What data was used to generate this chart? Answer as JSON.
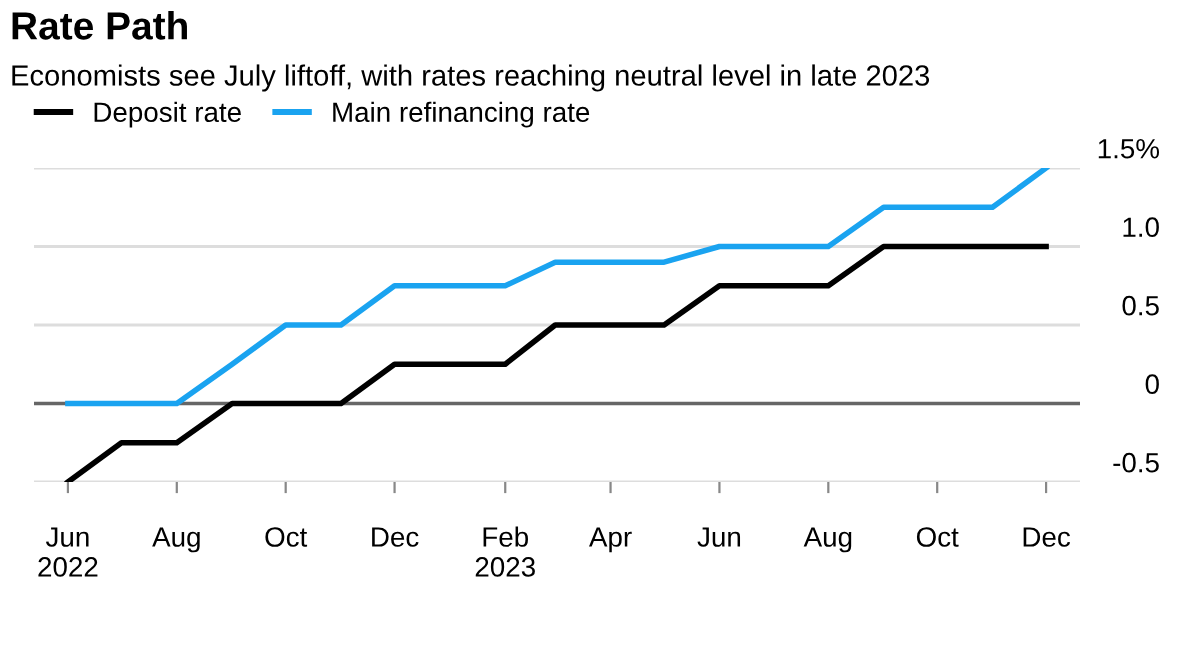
{
  "chart_data": {
    "type": "line",
    "title": "Rate Path",
    "subtitle": "Economists see July liftoff, with rates reaching neutral level in late 2023",
    "x": [
      "2022-06",
      "2022-07",
      "2022-08",
      "2022-09",
      "2022-10",
      "2022-11",
      "2022-12",
      "2023-01",
      "2023-02",
      "2023-03",
      "2023-04",
      "2023-05",
      "2023-06",
      "2023-07",
      "2023-08",
      "2023-09",
      "2023-10",
      "2023-11",
      "2023-12"
    ],
    "series": [
      {
        "name": "Deposit rate",
        "color": "#000000",
        "values": [
          -0.5,
          -0.25,
          -0.25,
          0,
          0,
          0,
          0.25,
          0.25,
          0.25,
          0.5,
          0.5,
          0.5,
          0.75,
          0.75,
          0.75,
          1.0,
          1.0,
          1.0,
          1.0
        ]
      },
      {
        "name": "Main refinancing rate",
        "color": "#1aa3f0",
        "values": [
          0,
          0,
          0,
          0.25,
          0.5,
          0.5,
          0.75,
          0.75,
          0.75,
          0.9,
          0.9,
          0.9,
          1.0,
          1.0,
          1.0,
          1.25,
          1.25,
          1.25,
          1.5
        ]
      }
    ],
    "xlim": [
      "2022-05-13",
      "2023-12-20"
    ],
    "xticks": [
      {
        "value": "2022-06",
        "label": "Jun\n2022"
      },
      {
        "value": "2022-08",
        "label": "Aug"
      },
      {
        "value": "2022-10",
        "label": "Oct"
      },
      {
        "value": "2022-12",
        "label": "Dec"
      },
      {
        "value": "2023-02",
        "label": "Feb\n2023"
      },
      {
        "value": "2023-04",
        "label": "Apr"
      },
      {
        "value": "2023-06",
        "label": "Jun"
      },
      {
        "value": "2023-08",
        "label": "Aug"
      },
      {
        "value": "2023-10",
        "label": "Oct"
      },
      {
        "value": "2023-12",
        "label": "Dec"
      }
    ],
    "ylim": [
      -0.5,
      1.5
    ],
    "yticks": [
      -0.5,
      0,
      0.5,
      {
        "value": 1.0,
        "label": "1.0"
      },
      {
        "value": 1.5,
        "label": "1.5%"
      }
    ],
    "ref_lines": [
      {
        "axis": "y",
        "value": 0,
        "label": null,
        "color": "#666666"
      }
    ],
    "grid": "y",
    "legend": "top left",
    "marker": "none",
    "line_style": "solid"
  }
}
